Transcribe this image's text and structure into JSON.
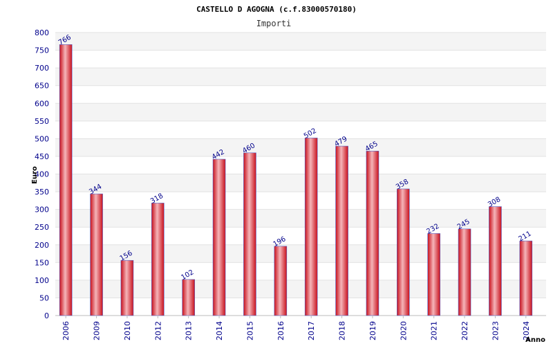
{
  "chart_data": {
    "type": "bar",
    "title": "CASTELLO D AGOGNA (c.f.83000570180)",
    "subtitle": "Importi",
    "xlabel": "Anno",
    "ylabel": "Euro",
    "ylim": [
      0,
      800
    ],
    "ytick_step": 50,
    "grid": true,
    "categories": [
      "2006",
      "2009",
      "2010",
      "2012",
      "2013",
      "2014",
      "2015",
      "2016",
      "2017",
      "2018",
      "2019",
      "2020",
      "2021",
      "2022",
      "2023",
      "2024"
    ],
    "values": [
      766,
      344,
      156,
      318,
      102,
      442,
      460,
      196,
      502,
      479,
      465,
      358,
      232,
      245,
      308,
      211
    ],
    "colors": {
      "bar_dark": "#d4101e",
      "bar_light": "#f5a3a8",
      "bar_edge": "#5566cc",
      "band": "#f4f4f4",
      "text": "#00008b"
    }
  }
}
